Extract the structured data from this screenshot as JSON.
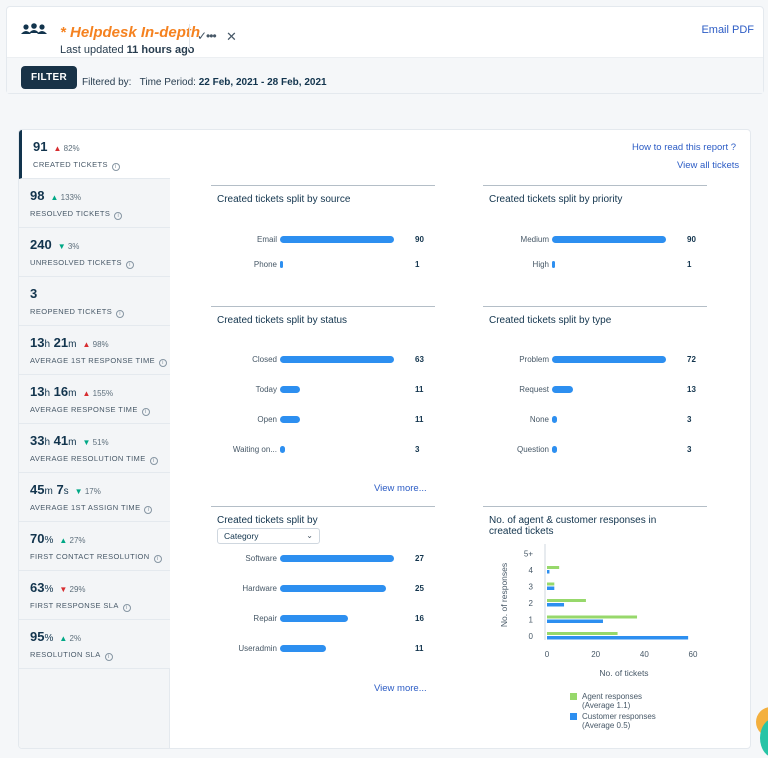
{
  "header": {
    "title": "* Helpdesk In-depth",
    "updated_prefix": "Last updated ",
    "updated_value": "11 hours ago",
    "email_pdf": "Email PDF"
  },
  "filter": {
    "button": "FILTER",
    "label": "Filtered by:",
    "period_label": "Time Period:",
    "period_value": "22 Feb, 2021 - 28 Feb, 2021"
  },
  "links": {
    "how_to_read": "How to read this report ?",
    "view_all": "View all tickets",
    "view_more_1": "View more...",
    "view_more_2": "View more..."
  },
  "metrics": [
    {
      "value": "91",
      "trend": "82%",
      "dir": "up-red",
      "label": "CREATED TICKETS"
    },
    {
      "value": "98",
      "trend": "133%",
      "dir": "up-green",
      "label": "RESOLVED TICKETS"
    },
    {
      "value": "240",
      "trend": "3%",
      "dir": "down-green",
      "label": "UNRESOLVED TICKETS"
    },
    {
      "value": "3",
      "trend": "",
      "dir": "",
      "label": "REOPENED TICKETS"
    },
    {
      "value_h": "13",
      "value_m": "21",
      "trend": "98%",
      "dir": "up-red",
      "label": "AVERAGE 1ST RESPONSE TIME"
    },
    {
      "value_h": "13",
      "value_m": "16",
      "trend": "155%",
      "dir": "up-red",
      "label": "AVERAGE RESPONSE TIME"
    },
    {
      "value_h": "33",
      "value_m": "41",
      "trend": "51%",
      "dir": "down-green",
      "label": "AVERAGE RESOLUTION TIME"
    },
    {
      "value_m": "45",
      "value_s": "7",
      "trend": "17%",
      "dir": "down-green",
      "label": "AVERAGE 1ST ASSIGN TIME"
    },
    {
      "value": "70",
      "trend": "27%",
      "dir": "up-green",
      "label": "FIRST CONTACT RESOLUTION"
    },
    {
      "value": "63",
      "trend": "29%",
      "dir": "down-red",
      "label": "FIRST RESPONSE SLA"
    },
    {
      "value": "95",
      "trend": "2%",
      "dir": "up-green",
      "label": "RESOLUTION SLA"
    }
  ],
  "units": {
    "h": "h",
    "m": "m",
    "s": "s",
    "pct": "%"
  },
  "cards": {
    "source": {
      "title": "Created tickets split by source",
      "rows": [
        {
          "label": "Email",
          "value": 90,
          "text": "90"
        },
        {
          "label": "Phone",
          "value": 1,
          "text": "1"
        }
      ]
    },
    "priority": {
      "title": "Created tickets split by priority",
      "rows": [
        {
          "label": "Medium",
          "value": 90,
          "text": "90"
        },
        {
          "label": "High",
          "value": 1,
          "text": "1"
        }
      ]
    },
    "status": {
      "title": "Created tickets split by status",
      "rows": [
        {
          "label": "Closed",
          "value": 63,
          "text": "63"
        },
        {
          "label": "Today",
          "value": 11,
          "text": "11"
        },
        {
          "label": "Open",
          "value": 11,
          "text": "11"
        },
        {
          "label": "Waiting on...",
          "value": 3,
          "text": "3"
        }
      ]
    },
    "type": {
      "title": "Created tickets split by type",
      "rows": [
        {
          "label": "Problem",
          "value": 72,
          "text": "72"
        },
        {
          "label": "Request",
          "value": 13,
          "text": "13"
        },
        {
          "label": "None",
          "value": 3,
          "text": "3"
        },
        {
          "label": "Question",
          "value": 3,
          "text": "3"
        }
      ]
    },
    "category": {
      "title": "Created tickets split by",
      "dropdown": "Category",
      "rows": [
        {
          "label": "Software",
          "value": 27,
          "text": "27"
        },
        {
          "label": "Hardware",
          "value": 25,
          "text": "25"
        },
        {
          "label": "Repair",
          "value": 16,
          "text": "16"
        },
        {
          "label": "Useradmin",
          "value": 11,
          "text": "11"
        }
      ]
    }
  },
  "chart_data": {
    "type": "bar",
    "orientation": "horizontal",
    "title": "No. of agent & customer responses in created tickets",
    "categories": [
      "0",
      "1",
      "2",
      "3",
      "4",
      "5+"
    ],
    "xlabel": "No. of tickets",
    "ylabel": "No. of responses",
    "xlim": [
      0,
      60
    ],
    "xticks": [
      "0",
      "20",
      "40",
      "60"
    ],
    "series": [
      {
        "name": "Agent responses",
        "note": "(Average 1.1)",
        "color": "#97d86b",
        "values": [
          29,
          37,
          16,
          3,
          5,
          0
        ]
      },
      {
        "name": "Customer responses",
        "note": "(Average 0.5)",
        "color": "#2d8ff0",
        "values": [
          58,
          23,
          7,
          3,
          1,
          0
        ]
      }
    ],
    "legend_position": "bottom"
  }
}
